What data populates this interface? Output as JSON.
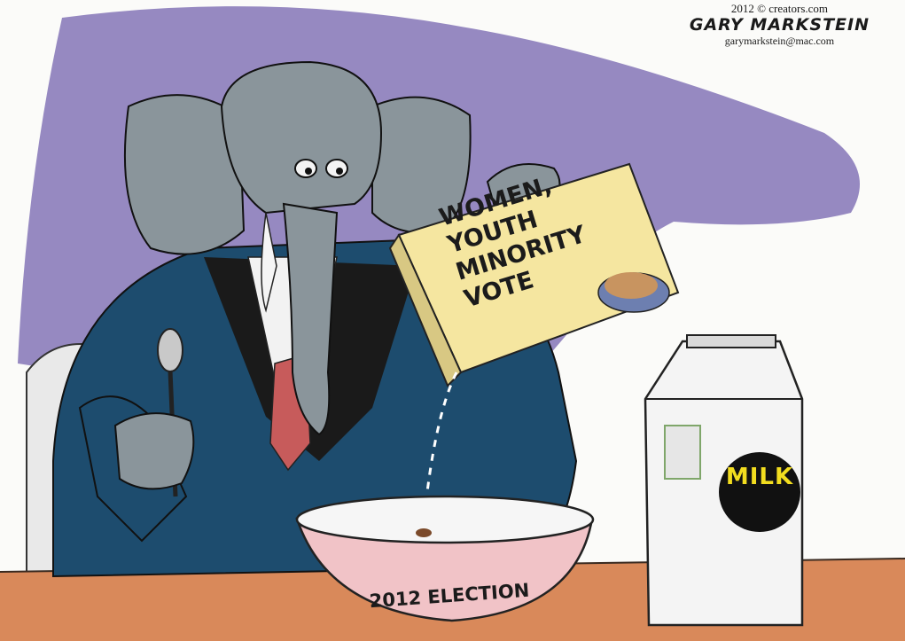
{
  "credit": {
    "line1": "2012 © creators.com",
    "artist": "GARY MARKSTEIN",
    "email": "garymarkstein@mac.com"
  },
  "cereal_box": {
    "line1": "WOMEN, YOUTH",
    "line2": "MINORITY",
    "line3": "VOTE"
  },
  "milk_carton": {
    "label": "MILK"
  },
  "bowl": {
    "label": "2012 ELECTION"
  },
  "colors": {
    "sky_purple": "#7f6fb4",
    "elephant_gray": "#8a959b",
    "suit_blue": "#1d4c6e",
    "box_yellow": "#f5e6a0",
    "tie_red": "#c75b5b",
    "table_orange": "#d9895a",
    "bowl_pink": "#f1c3c7",
    "milk_black": "#111111",
    "milk_yellow": "#f2dd1f"
  }
}
